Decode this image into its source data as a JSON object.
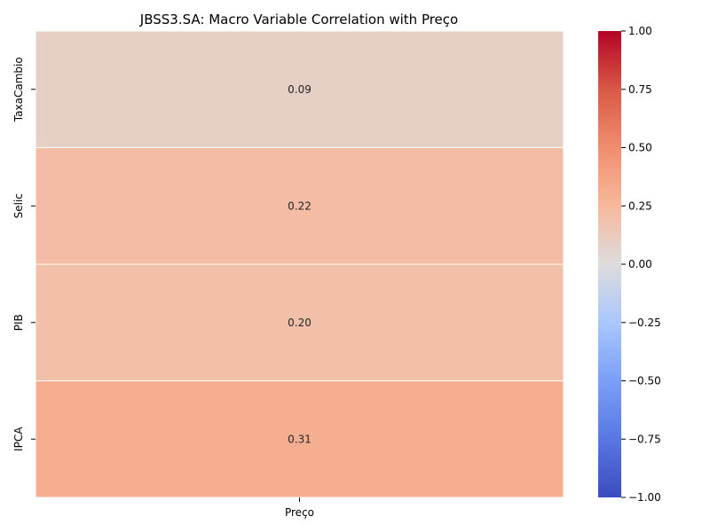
{
  "chart_data": {
    "type": "heatmap",
    "title": "JBSS3.SA: Macro Variable Correlation with Preço",
    "x_categories": [
      "Preço"
    ],
    "y_categories": [
      "TaxaCambio",
      "Selic",
      "PIB",
      "IPCA"
    ],
    "values": [
      [
        0.09
      ],
      [
        0.22
      ],
      [
        0.2
      ],
      [
        0.31
      ]
    ],
    "value_labels": [
      [
        "0.09"
      ],
      [
        "0.22"
      ],
      [
        "0.20"
      ],
      [
        "0.31"
      ]
    ],
    "colormap": "coolwarm",
    "vmin": -1.0,
    "vmax": 1.0,
    "colorbar": {
      "ticks": [
        1.0,
        0.75,
        0.5,
        0.25,
        0.0,
        -0.25,
        -0.5,
        -0.75,
        -1.0
      ],
      "tick_labels": [
        "1.00",
        "0.75",
        "0.50",
        "0.25",
        "0.00",
        "−0.25",
        "−0.50",
        "−0.75",
        "−1.00"
      ]
    },
    "colors": {
      "vmin": "#3b4cc0",
      "mid": "#dddddd",
      "vmax": "#b40426"
    }
  }
}
